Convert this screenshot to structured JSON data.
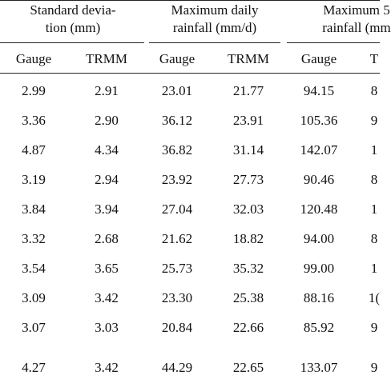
{
  "groups": [
    {
      "line1": "Standard devia-",
      "line2": "tion (mm)"
    },
    {
      "line1": "Maximum daily",
      "line2": "rainfall (mm/d)"
    },
    {
      "line1": "Maximum 5",
      "line2": "rainfall (mm"
    }
  ],
  "subheaders": [
    "Gauge",
    "TRMM",
    "Gauge",
    "TRMM",
    "Gauge",
    "T"
  ],
  "rows": [
    [
      "2.99",
      "2.91",
      "23.01",
      "21.77",
      "94.15",
      "8"
    ],
    [
      "3.36",
      "2.90",
      "36.12",
      "23.91",
      "105.36",
      "9"
    ],
    [
      "4.87",
      "4.34",
      "36.82",
      "31.14",
      "142.07",
      "1"
    ],
    [
      "3.19",
      "2.94",
      "23.92",
      "27.73",
      "90.46",
      "8"
    ],
    [
      "3.84",
      "3.94",
      "27.04",
      "32.03",
      "120.48",
      "1"
    ],
    [
      "3.32",
      "2.68",
      "21.62",
      "18.82",
      "94.00",
      "8"
    ],
    [
      "3.54",
      "3.65",
      "25.73",
      "35.32",
      "99.00",
      "1"
    ],
    [
      "3.09",
      "3.42",
      "23.30",
      "25.38",
      "88.16",
      "1("
    ],
    [
      "3.07",
      "3.03",
      "20.84",
      "22.66",
      "85.92",
      "9"
    ],
    [
      "4.27",
      "3.42",
      "44.29",
      "22.65",
      "133.07",
      "9"
    ]
  ]
}
